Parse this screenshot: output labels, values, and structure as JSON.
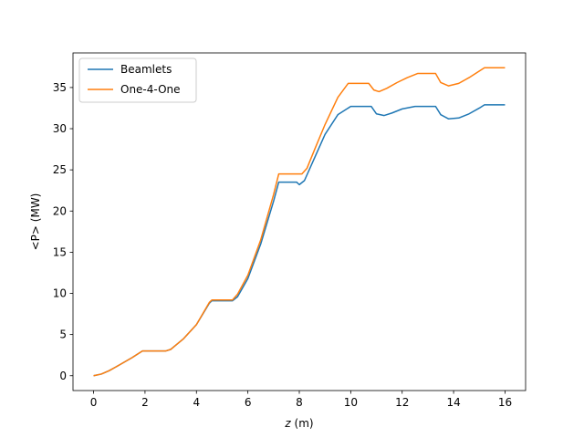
{
  "chart_data": {
    "type": "line",
    "title": "",
    "xlabel_var": "z",
    "xlabel_unit": " (m)",
    "ylabel": "<P> (MW)",
    "xlim": [
      -0.8,
      16.8
    ],
    "ylim": [
      -1.8,
      39.2
    ],
    "xticks": [
      0,
      2,
      4,
      6,
      8,
      10,
      12,
      14,
      16
    ],
    "yticks": [
      0,
      5,
      10,
      15,
      20,
      25,
      30,
      35
    ],
    "grid": false,
    "legend_position": "upper left",
    "series": [
      {
        "name": "Beamlets",
        "color": "#1f77b4",
        "points": [
          [
            0,
            0
          ],
          [
            0.3,
            0.2
          ],
          [
            0.6,
            0.6
          ],
          [
            1.0,
            1.3
          ],
          [
            1.5,
            2.2
          ],
          [
            1.9,
            3.0
          ],
          [
            2.8,
            3.0
          ],
          [
            3.0,
            3.2
          ],
          [
            3.5,
            4.5
          ],
          [
            4.0,
            6.2
          ],
          [
            4.5,
            8.8
          ],
          [
            4.6,
            9.1
          ],
          [
            5.4,
            9.1
          ],
          [
            5.6,
            9.6
          ],
          [
            6.0,
            11.8
          ],
          [
            6.5,
            16.0
          ],
          [
            7.0,
            21.2
          ],
          [
            7.2,
            23.5
          ],
          [
            7.9,
            23.5
          ],
          [
            8.0,
            23.2
          ],
          [
            8.2,
            23.7
          ],
          [
            8.5,
            25.8
          ],
          [
            9.0,
            29.3
          ],
          [
            9.5,
            31.7
          ],
          [
            10.0,
            32.7
          ],
          [
            10.8,
            32.7
          ],
          [
            11.0,
            31.8
          ],
          [
            11.3,
            31.6
          ],
          [
            11.6,
            31.9
          ],
          [
            12.0,
            32.4
          ],
          [
            12.5,
            32.7
          ],
          [
            13.3,
            32.7
          ],
          [
            13.5,
            31.7
          ],
          [
            13.8,
            31.2
          ],
          [
            14.2,
            31.3
          ],
          [
            14.6,
            31.8
          ],
          [
            15.0,
            32.5
          ],
          [
            15.2,
            32.9
          ],
          [
            16.0,
            32.9
          ]
        ]
      },
      {
        "name": "One-4-One",
        "color": "#ff7f0e",
        "points": [
          [
            0,
            0
          ],
          [
            0.3,
            0.2
          ],
          [
            0.6,
            0.6
          ],
          [
            1.0,
            1.3
          ],
          [
            1.5,
            2.2
          ],
          [
            1.9,
            3.0
          ],
          [
            2.8,
            3.0
          ],
          [
            3.0,
            3.2
          ],
          [
            3.5,
            4.5
          ],
          [
            4.0,
            6.2
          ],
          [
            4.5,
            8.9
          ],
          [
            4.6,
            9.2
          ],
          [
            5.4,
            9.2
          ],
          [
            5.6,
            9.9
          ],
          [
            6.0,
            12.2
          ],
          [
            6.5,
            16.5
          ],
          [
            7.0,
            22.0
          ],
          [
            7.2,
            24.5
          ],
          [
            8.1,
            24.5
          ],
          [
            8.3,
            25.2
          ],
          [
            8.6,
            27.5
          ],
          [
            9.0,
            30.5
          ],
          [
            9.5,
            33.8
          ],
          [
            9.9,
            35.5
          ],
          [
            10.7,
            35.5
          ],
          [
            10.9,
            34.7
          ],
          [
            11.1,
            34.5
          ],
          [
            11.4,
            34.9
          ],
          [
            11.8,
            35.6
          ],
          [
            12.2,
            36.2
          ],
          [
            12.6,
            36.7
          ],
          [
            13.3,
            36.7
          ],
          [
            13.5,
            35.6
          ],
          [
            13.8,
            35.2
          ],
          [
            14.2,
            35.5
          ],
          [
            14.6,
            36.2
          ],
          [
            15.0,
            37.0
          ],
          [
            15.2,
            37.4
          ],
          [
            16.0,
            37.4
          ]
        ]
      }
    ]
  }
}
